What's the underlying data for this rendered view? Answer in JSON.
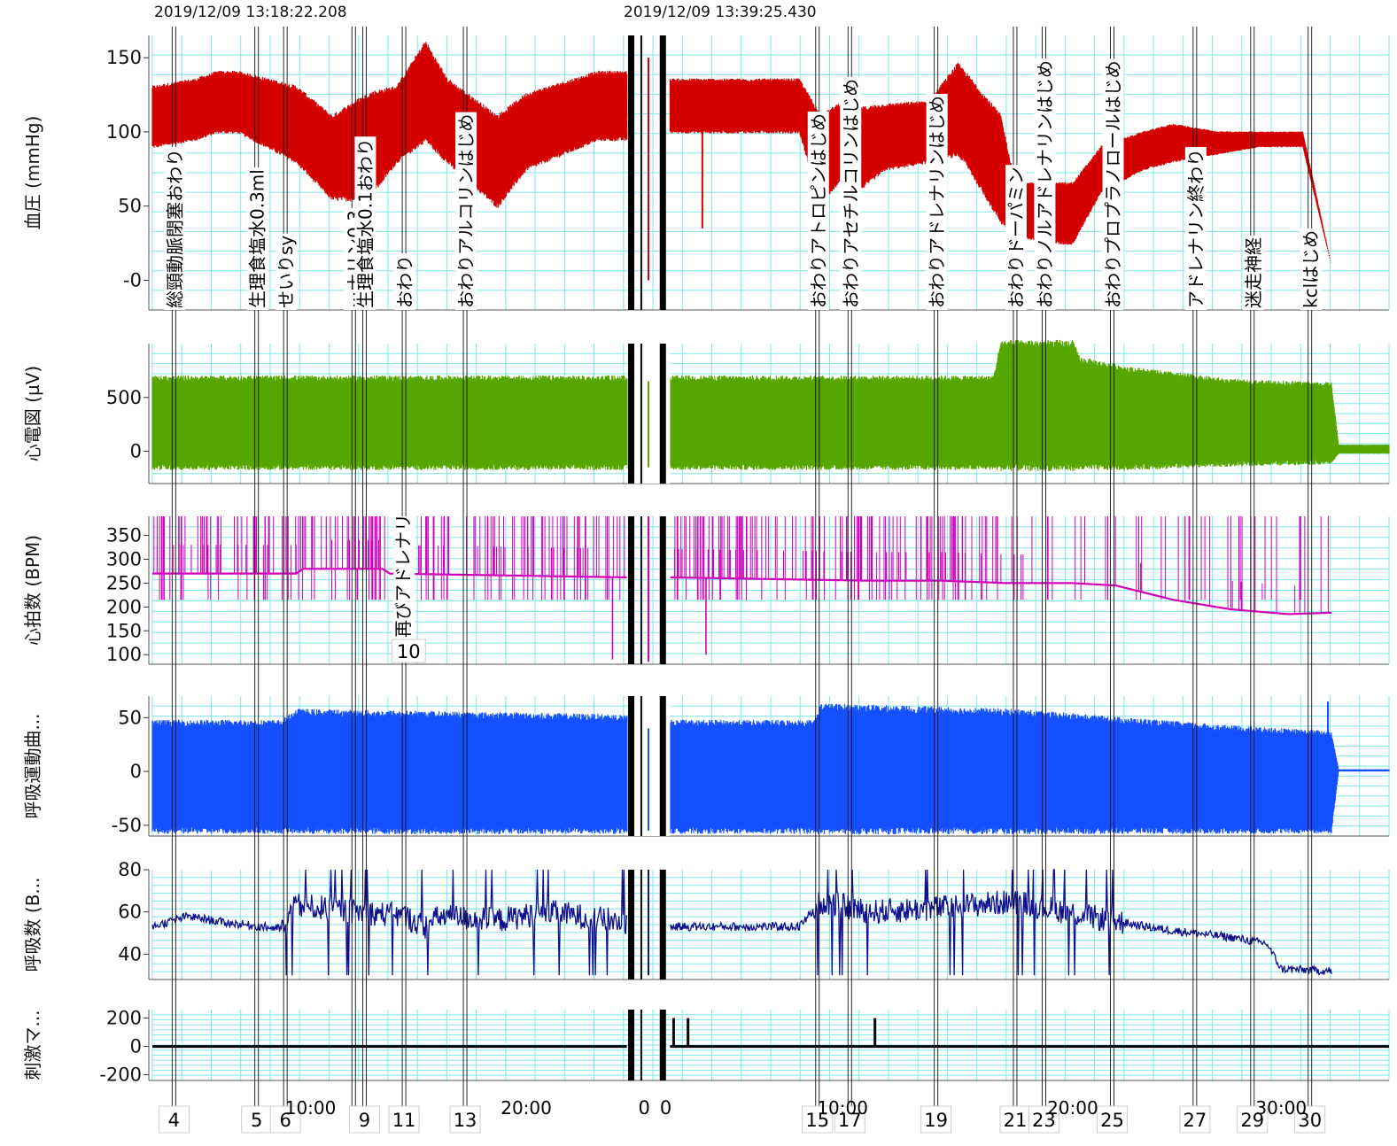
{
  "header": {
    "timestamps": [
      "2019/12/09 13:18:22.208",
      "2019/12/09 13:39:25.430"
    ]
  },
  "colors": {
    "bp": "#d40000",
    "ecg": "#57a600",
    "hr": "#d000b8",
    "resp": "#1450ff",
    "rr": "#10108c",
    "stim": "#000000",
    "grid": "#7fe8e8"
  },
  "chart_data": [
    {
      "type": "line",
      "ylabel": "血圧 (mmHg)",
      "ylim": [
        -20,
        165
      ],
      "yticks": [
        150,
        100,
        50,
        0
      ],
      "ytick_labels": [
        "150",
        "100",
        "50",
        "-0"
      ],
      "grid": true,
      "series": [
        {
          "envelope_segment1": {
            "x": [
              0,
              6,
              9,
              12,
              20,
              25,
              30,
              34,
              38,
              41,
              48,
              52,
              62,
              66
            ],
            "min": [
              90,
              95,
              100,
              100,
              80,
              55,
              55,
              80,
              95,
              80,
              50,
              75,
              95,
              95
            ],
            "max": [
              130,
              135,
              140,
              140,
              130,
              110,
              125,
              130,
              160,
              135,
              110,
              125,
              140,
              140
            ]
          },
          "envelope_segment2": {
            "x": [
              72,
              90,
              93,
              96,
              98,
              102,
              108,
              112,
              113,
              118,
              120,
              126,
              128,
              132,
              138,
              142,
              148,
              154,
              160,
              164,
              172
            ],
            "min": [
              100,
              100,
              50,
              70,
              60,
              75,
              80,
              85,
              80,
              40,
              30,
              25,
              25,
              60,
              75,
              80,
              85,
              90,
              90,
              10,
              -5
            ],
            "max": [
              135,
              135,
              110,
              120,
              115,
              118,
              120,
              145,
              140,
              110,
              65,
              65,
              65,
              90,
              100,
              105,
              100,
              100,
              100,
              10,
              -5
            ]
          }
        }
      ]
    },
    {
      "type": "line",
      "ylabel": "心電図 (µV)",
      "ylim": [
        -300,
        1000
      ],
      "yticks": [
        500,
        0
      ],
      "ytick_labels": [
        "500",
        "0"
      ],
      "grid": true,
      "series": [
        {
          "envelope": {
            "x": [
              0,
              66,
              72,
              117,
              118,
              128,
              129,
              136,
              150,
              164,
              165,
              172
            ],
            "min": [
              -150,
              -150,
              -150,
              -150,
              -150,
              -150,
              -150,
              -150,
              -120,
              -100,
              -20,
              -20
            ],
            "max": [
              680,
              680,
              680,
              680,
              1000,
              1000,
              850,
              760,
              650,
              620,
              60,
              60
            ]
          }
        }
      ]
    },
    {
      "type": "line",
      "ylabel": "心拍数 (BPM)",
      "ylim": [
        80,
        390
      ],
      "yticks": [
        350,
        300,
        250,
        200,
        150,
        100
      ],
      "ytick_labels": [
        "350",
        "300",
        "250",
        "200",
        "150",
        "100"
      ],
      "grid": true,
      "series": [
        {
          "baseline": {
            "x": [
              0,
              20,
              21,
              32,
              33,
              66,
              72,
              100,
              110,
              119,
              128,
              134,
              142,
              150,
              158,
              164
            ],
            "y": [
              270,
              270,
              280,
              280,
              270,
              262,
              262,
              255,
              255,
              250,
              250,
              245,
              215,
              195,
              185,
              188
            ]
          }
        }
      ]
    },
    {
      "type": "line",
      "ylabel": "呼吸運動曲...",
      "ylim": [
        -60,
        70
      ],
      "yticks": [
        50,
        0,
        -50
      ],
      "ytick_labels": [
        "50",
        "0",
        "-50"
      ],
      "grid": true,
      "series": [
        {
          "envelope": {
            "x": [
              0,
              18,
              20,
              66,
              72,
              92,
              93,
              120,
              150,
              164,
              165,
              172
            ],
            "min": [
              -55,
              -55,
              -55,
              -55,
              -55,
              -55,
              -55,
              -55,
              -55,
              -55,
              0,
              0
            ],
            "max": [
              45,
              45,
              55,
              50,
              45,
              45,
              60,
              55,
              40,
              35,
              2,
              2
            ]
          }
        }
      ]
    },
    {
      "type": "line",
      "ylabel": "呼吸数 (B...",
      "ylim": [
        28,
        80
      ],
      "yticks": [
        80,
        60,
        40
      ],
      "ytick_labels": [
        "80",
        "60",
        "40"
      ],
      "grid": true,
      "series": [
        {
          "baseline": {
            "x": [
              0,
              5,
              10,
              18,
              20,
              35,
              38,
              40,
              48,
              55,
              66,
              72,
              90,
              93,
              100,
              110,
              120,
              130,
              140,
              150,
              155,
              157,
              164
            ],
            "y": [
              53,
              58,
              55,
              52,
              63,
              58,
              53,
              58,
              56,
              60,
              55,
              53,
              53,
              65,
              60,
              62,
              65,
              58,
              52,
              48,
              45,
              33,
              32
            ]
          }
        }
      ]
    },
    {
      "type": "line",
      "ylabel": "刺激マ...",
      "ylim": [
        -240,
        260
      ],
      "yticks": [
        200,
        0,
        -200
      ],
      "ytick_labels": [
        "200",
        "0",
        "-200"
      ],
      "grid": true,
      "series": [
        {
          "baseline": 0,
          "pulses_x": [
            72.5,
            74.5,
            100.5
          ],
          "pulse_height": 200
        }
      ]
    }
  ],
  "events": [
    {
      "x": 3,
      "label": "総頸動脈閉塞おわり",
      "number": "4"
    },
    {
      "x": 14.5,
      "label": "生理食塩水0.3ml",
      "number": "5"
    },
    {
      "x": 18.5,
      "label": "せいりsy",
      "number": "6"
    },
    {
      "x": 28,
      "label": "···ナリン0.3",
      "number": ""
    },
    {
      "x": 29.5,
      "label": "生理食塩水0.1おわり",
      "number": "9"
    },
    {
      "x": 35,
      "label": "おわり",
      "number": "11"
    },
    {
      "x": 43.5,
      "label": "おわりアルコリンはじめ",
      "number": "13"
    },
    {
      "x": 92.5,
      "label": "おわりアトロピンはじめ",
      "number": "15"
    },
    {
      "x": 97,
      "label": "おわりアセチルコリンはじめ",
      "number": "17"
    },
    {
      "x": 109,
      "label": "おわりアドレナリンはじめ",
      "number": "19"
    },
    {
      "x": 120,
      "label": "おわりドーパミン",
      "number": "21"
    },
    {
      "x": 124,
      "label": "おわりノルアドレナリンはじめ",
      "number": "23"
    },
    {
      "x": 133.5,
      "label": "おわりプロプラノロールはじめ",
      "number": "25"
    },
    {
      "x": 145,
      "label": "アドレナリン終わり",
      "number": "27"
    },
    {
      "x": 153,
      "label": "迷走神経",
      "number": "29"
    },
    {
      "x": 161,
      "label": "kclはじめ",
      "number": "30"
    }
  ],
  "extra_labels": {
    "hr_annotation": "再びアドレナリ",
    "hr_number": "10",
    "gap_numbers": [
      "0",
      "0"
    ]
  },
  "time_axis": {
    "tick_labels": [
      "10:00",
      "20:00",
      "10:00",
      "20:00",
      "30:00"
    ]
  }
}
